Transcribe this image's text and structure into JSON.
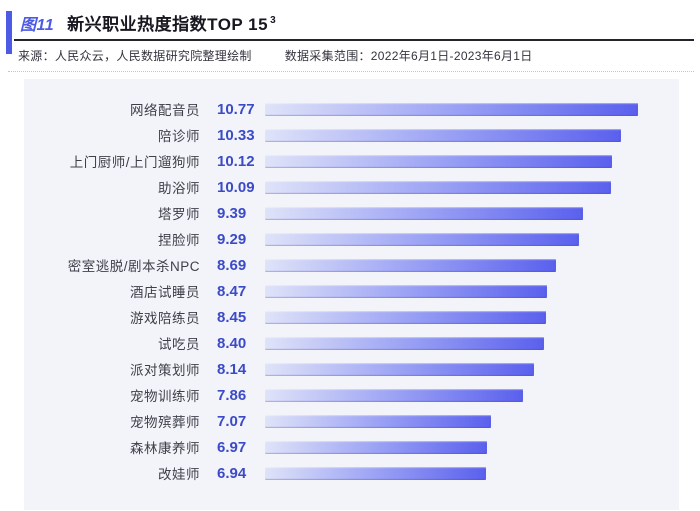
{
  "figure": {
    "fig_label": "图11",
    "title": "新兴职业热度指数TOP 15",
    "title_superscript": "3",
    "source": "来源：人民众云，人民数据研究院整理绘制",
    "data_range": "数据采集范围：2022年6月1日-2023年6月1日"
  },
  "colors": {
    "accent": "#4c5ae6",
    "title_text": "#16171f",
    "value_text": "#3b4bc7",
    "category_text": "#3e3f49",
    "panel_bg": "#f3f4f9",
    "bar_gradient_start": "#dfe3f8",
    "bar_gradient_mid": "#99a0f4",
    "bar_gradient_end": "#5a60ed"
  },
  "chart_data": {
    "type": "bar",
    "orientation": "horizontal",
    "title": "新兴职业热度指数TOP 15",
    "categories": [
      "网络配音员",
      "陪诊师",
      "上门厨师/上门遛狗师",
      "助浴师",
      "塔罗师",
      "捏脸师",
      "密室逃脱/剧本杀NPC",
      "酒店试睡员",
      "游戏陪练员",
      "试吃员",
      "派对策划师",
      "宠物训练师",
      "宠物殡葬师",
      "森林康养师",
      "改娃师"
    ],
    "values": [
      10.77,
      10.33,
      10.12,
      10.09,
      9.39,
      9.29,
      8.69,
      8.47,
      8.45,
      8.4,
      8.14,
      7.86,
      7.07,
      6.97,
      6.94
    ],
    "value_labels": [
      "10.77",
      "10.33",
      "10.12",
      "10.09",
      "9.39",
      "9.29",
      "8.69",
      "8.47",
      "8.45",
      "8.40",
      "8.14",
      "7.86",
      "7.07",
      "6.97",
      "6.94"
    ],
    "xlim": [
      1.36,
      11.8
    ],
    "grid": false,
    "legend": false,
    "value_labels_shown": true,
    "sort": "descending"
  }
}
